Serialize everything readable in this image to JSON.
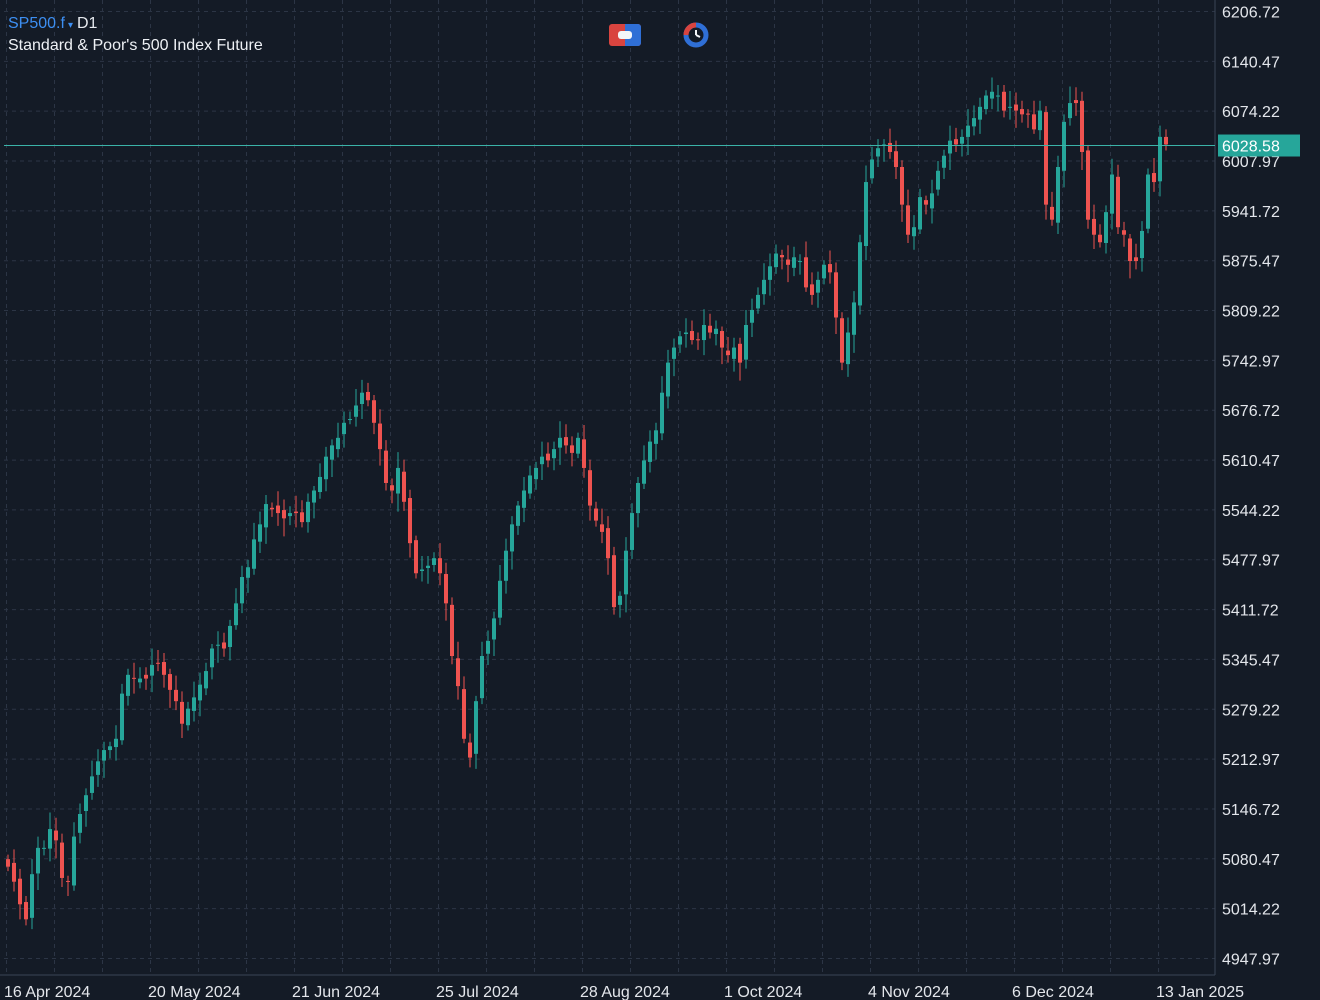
{
  "header": {
    "symbol": "SP500.f",
    "caret": "▾",
    "timeframe": "D1",
    "description": "Standard & Poor's 500 Index Future"
  },
  "toolbar": {
    "icons": [
      "one-click-trading-icon",
      "auto-refresh-timer-icon"
    ]
  },
  "colors": {
    "background": "#141b26",
    "up": "#26a69a",
    "down": "#ef5350",
    "grid": "#2c3545",
    "price_line": "#3bb3a8",
    "price_label_bg": "#26a69a",
    "axis_text": "#e3e6eb",
    "symbol": "#3d8ff2"
  },
  "chart_data": {
    "type": "candlestick",
    "y_ticks": [
      "6206.72",
      "6140.47",
      "6074.22",
      "6007.97",
      "5941.72",
      "5875.47",
      "5809.22",
      "5742.97",
      "5676.72",
      "5610.47",
      "5544.22",
      "5477.97",
      "5411.72",
      "5345.47",
      "5279.22",
      "5212.97",
      "5146.72",
      "5080.47",
      "5014.22",
      "4947.97"
    ],
    "ylim": [
      4926.0,
      6222.0
    ],
    "x_ticks": [
      "16 Apr 2024",
      "20 May 2024",
      "21 Jun 2024",
      "25 Jul 2024",
      "28 Aug 2024",
      "1 Oct 2024",
      "4 Nov 2024",
      "6 Dec 2024",
      "13 Jan 2025"
    ],
    "x_tick_positions": [
      0,
      24,
      48,
      72,
      96,
      120,
      144,
      168,
      192
    ],
    "current_price": 6028.58,
    "current_price_label": "6028.58",
    "grid": true,
    "closes": [
      5070,
      5050,
      5020,
      5000,
      5060,
      5095,
      5095,
      5120,
      5105,
      5055,
      5050,
      5110,
      5140,
      5165,
      5190,
      5210,
      5225,
      5230,
      5240,
      5300,
      5325,
      5320,
      5320,
      5320,
      5338,
      5340,
      5325,
      5305,
      5290,
      5260,
      5280,
      5295,
      5312,
      5330,
      5360,
      5365,
      5360,
      5390,
      5420,
      5455,
      5468,
      5505,
      5525,
      5552,
      5545,
      5540,
      5533,
      5540,
      5540,
      5528,
      5555,
      5570,
      5588,
      5615,
      5630,
      5640,
      5660,
      5665,
      5683,
      5700,
      5690,
      5660,
      5625,
      5580,
      5570,
      5600,
      5555,
      5500,
      5460,
      5465,
      5470,
      5480,
      5460,
      5420,
      5350,
      5310,
      5240,
      5215,
      5290,
      5350,
      5370,
      5400,
      5450,
      5490,
      5525,
      5550,
      5570,
      5590,
      5600,
      5615,
      5610,
      5625,
      5640,
      5630,
      5620,
      5640,
      5600,
      5550,
      5530,
      5515,
      5480,
      5415,
      5430,
      5490,
      5540,
      5580,
      5610,
      5635,
      5650,
      5700,
      5740,
      5760,
      5775,
      5780,
      5770,
      5770,
      5790,
      5780,
      5785,
      5760,
      5750,
      5760,
      5740,
      5790,
      5810,
      5830,
      5850,
      5868,
      5885,
      5880,
      5870,
      5880,
      5875,
      5840,
      5830,
      5850,
      5870,
      5860,
      5800,
      5740,
      5780,
      5820,
      5900,
      5980,
      6010,
      6025,
      6030,
      6020,
      6000,
      5950,
      5910,
      5920,
      5960,
      5950,
      5965,
      5995,
      6015,
      6035,
      6030,
      6040,
      6055,
      6065,
      6080,
      6095,
      6100,
      6095,
      6075,
      6080,
      6075,
      6070,
      6070,
      6050,
      6075,
      5950,
      5930,
      6000,
      6060,
      6085,
      6085,
      6020,
      5930,
      5910,
      5900,
      5940,
      5990,
      5920,
      5910,
      5875,
      5875,
      5915,
      5990,
      5980,
      6040,
      6030
    ]
  }
}
